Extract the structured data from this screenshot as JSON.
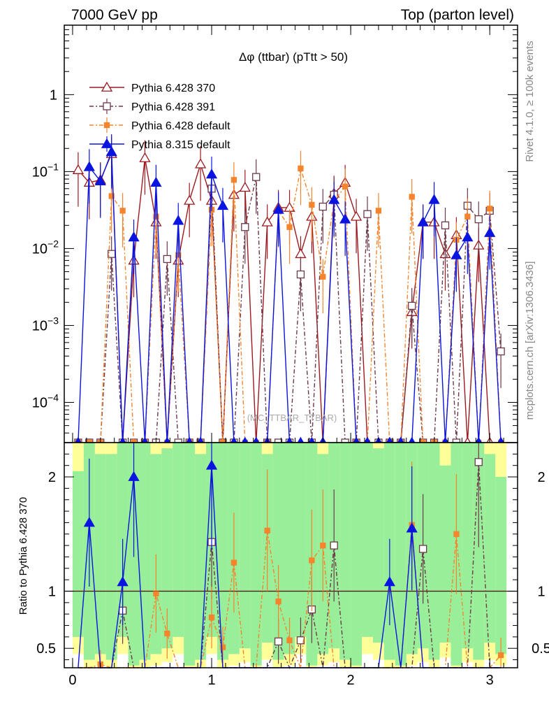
{
  "chart_data": {
    "type": "line",
    "header_left": "7000 GeV pp",
    "header_right": "Top (parton level)",
    "title": "Δφ (ttbar) (pTtt > 50)",
    "watermark": "(MC_TTBAR_TTBAR)",
    "side_text_top": "Rivet 4.1.0, ≥ 100k events",
    "side_text_bottom": "mcplots.cern.ch [arXiv:1306.3436]",
    "ylabel_ratio": "Ratio to Pythia 6.428 370",
    "xlim": [
      -0.06,
      3.2
    ],
    "ylim_main": [
      3e-05,
      8
    ],
    "ylim_ratio": [
      0.33,
      2.3
    ],
    "x_ticks": [
      "0",
      "1",
      "2",
      "3"
    ],
    "y_ticks_main": [
      "10^-4",
      "10^-3",
      "10^-2",
      "10^-1",
      "1"
    ],
    "y_ticks_ratio": [
      "0.5",
      "1",
      "2"
    ],
    "legend": [
      "Pythia 6.428 370",
      "Pythia 6.428 391",
      "Pythia 6.428 default",
      "Pythia 8.315 default"
    ],
    "colors": {
      "p370": "#9c1a1f",
      "p391": "#6b3a4a",
      "pdef": "#f5842c",
      "p8": "#0a14e0",
      "green": "#99ee99",
      "yellow": "#ffff99"
    },
    "x": [
      0.04,
      0.12,
      0.2,
      0.28,
      0.36,
      0.44,
      0.52,
      0.6,
      0.68,
      0.76,
      0.84,
      0.92,
      1.0,
      1.08,
      1.16,
      1.24,
      1.32,
      1.4,
      1.48,
      1.56,
      1.64,
      1.72,
      1.8,
      1.88,
      1.96,
      2.04,
      2.12,
      2.2,
      2.28,
      2.36,
      2.44,
      2.52,
      2.6,
      2.68,
      2.76,
      2.84,
      2.92,
      3.0,
      3.08
    ],
    "series": [
      {
        "name": "Pythia 6.428 370",
        "key": "p370",
        "marker": "triangle-open",
        "values": [
          0.105,
          0.072,
          0.078,
          0.17,
          0,
          0.007,
          0.15,
          0.022,
          0,
          0.007,
          0.042,
          0.125,
          0.042,
          0,
          0.05,
          0.062,
          0,
          0.022,
          0.034,
          0.034,
          0.0085,
          0.026,
          0,
          0.052,
          0.072,
          0.026,
          0,
          0,
          0,
          0,
          0.0015,
          0.022,
          0.022,
          0.0085,
          0.015,
          0,
          0.011,
          0,
          0
        ]
      },
      {
        "name": "Pythia 6.428 391",
        "key": "p391",
        "marker": "square-open",
        "values": [
          0,
          0,
          0,
          0.0085,
          0,
          0,
          0,
          0,
          0.0073,
          0,
          0,
          0,
          0.06,
          0,
          0,
          0.019,
          0.085,
          0,
          0,
          0,
          0.0046,
          0,
          0.035,
          0.05,
          0,
          0,
          0.028,
          0,
          0,
          0,
          0.0018,
          0,
          0,
          0.02,
          0,
          0.036,
          0.024,
          0.031,
          0.00046
        ]
      },
      {
        "name": "Pythia 6.428 default",
        "key": "pdef",
        "marker": "square-filled",
        "values": [
          0,
          0,
          0,
          0.048,
          0.031,
          0,
          0,
          0.026,
          0,
          0.0082,
          0,
          0,
          0.032,
          0,
          0.078,
          0,
          0,
          0,
          0.031,
          0.019,
          0.11,
          0.037,
          0.0043,
          0.041,
          0.064,
          0,
          0,
          0.031,
          0,
          0,
          0.047,
          0,
          0,
          0,
          0.013,
          0.026,
          0,
          0.033,
          0
        ]
      },
      {
        "name": "Pythia 8.315 default",
        "key": "p8",
        "marker": "triangle-filled",
        "values": [
          0,
          0.115,
          0.075,
          0.18,
          0,
          0.014,
          0,
          0.072,
          0,
          0.023,
          0,
          0,
          0.092,
          0.036,
          0,
          0,
          0,
          0,
          0.032,
          0,
          0,
          0,
          0,
          0.043,
          0.024,
          0,
          0,
          0,
          0,
          0,
          0,
          0.022,
          0.043,
          0,
          0.0082,
          0.014,
          0,
          0.016,
          0
        ]
      }
    ],
    "ratio_series": [
      {
        "key": "p391",
        "values": [
          0,
          0,
          0,
          0,
          0.83,
          0,
          0,
          0,
          0,
          0,
          0,
          0,
          1.43,
          0,
          0,
          0,
          0,
          0,
          0.56,
          0,
          0.57,
          0.84,
          0,
          1.4,
          0,
          0,
          0,
          0,
          0,
          0,
          0,
          1.37,
          0,
          0,
          0,
          0,
          2.13,
          0,
          0
        ]
      },
      {
        "key": "pdef",
        "values": [
          0,
          0,
          0.36,
          0,
          0,
          0,
          0,
          0.98,
          0.63,
          0,
          0,
          0,
          0.77,
          0.51,
          1.25,
          0,
          0,
          1.53,
          0.91,
          0.57,
          0,
          1.27,
          1.4,
          0,
          0,
          0,
          0,
          0,
          0,
          0,
          1.58,
          0,
          0,
          0,
          1.5,
          0,
          0,
          0,
          0.44
        ]
      },
      {
        "key": "p8",
        "values": [
          0,
          1.6,
          0,
          0,
          1.08,
          2.0,
          0,
          0,
          0,
          0,
          0,
          0,
          2.1,
          0,
          0,
          0,
          0,
          0,
          0,
          0,
          0,
          0,
          0,
          0,
          0,
          0,
          0,
          0,
          1.08,
          0,
          1.55,
          0,
          0,
          0,
          0,
          0,
          0,
          0,
          0
        ]
      }
    ],
    "band_green": [
      [
        0.6,
        2.05
      ],
      [
        0.4,
        2.3
      ],
      [
        0.45,
        2.2
      ],
      [
        0.4,
        2.2
      ],
      [
        0.6,
        2.3
      ],
      [
        0.35,
        2.3
      ],
      [
        0.4,
        2.3
      ],
      [
        0.45,
        2.2
      ],
      [
        0.5,
        2.25
      ],
      [
        0.6,
        2.3
      ],
      [
        0.35,
        2.3
      ],
      [
        0.4,
        2.2
      ],
      [
        0.6,
        2.3
      ],
      [
        0.4,
        2.3
      ],
      [
        0.45,
        2.3
      ],
      [
        0.5,
        2.3
      ],
      [
        0.35,
        2.3
      ],
      [
        0.55,
        2.2
      ],
      [
        0.4,
        2.3
      ],
      [
        0.45,
        2.3
      ],
      [
        0.6,
        2.3
      ],
      [
        0.35,
        2.3
      ],
      [
        0.45,
        2.2
      ],
      [
        0.5,
        2.3
      ],
      [
        0.4,
        2.3
      ],
      [
        0.35,
        2.3
      ],
      [
        0.6,
        2.3
      ],
      [
        0.55,
        2.25
      ],
      [
        0.4,
        2.3
      ],
      [
        0.35,
        2.3
      ],
      [
        0.45,
        2.3
      ],
      [
        0.5,
        2.3
      ],
      [
        0.4,
        2.3
      ],
      [
        0.55,
        2.1
      ],
      [
        0.35,
        2.3
      ],
      [
        0.5,
        2.3
      ],
      [
        0.4,
        2.3
      ],
      [
        0.55,
        2.2
      ],
      [
        0.45,
        2.0
      ]
    ],
    "band_yellow": [
      [
        0.45,
        2.3
      ],
      [
        0.33,
        2.3
      ],
      [
        0.35,
        2.3
      ],
      [
        0.33,
        2.3
      ],
      [
        0.45,
        2.3
      ],
      [
        0.33,
        2.3
      ],
      [
        0.33,
        2.3
      ],
      [
        0.35,
        2.3
      ],
      [
        0.38,
        2.3
      ],
      [
        0.45,
        2.3
      ],
      [
        0.33,
        2.3
      ],
      [
        0.33,
        2.3
      ],
      [
        0.45,
        2.3
      ],
      [
        0.33,
        2.3
      ],
      [
        0.35,
        2.3
      ],
      [
        0.38,
        2.3
      ],
      [
        0.33,
        2.3
      ],
      [
        0.4,
        2.3
      ],
      [
        0.33,
        2.3
      ],
      [
        0.35,
        2.3
      ],
      [
        0.45,
        2.3
      ],
      [
        0.33,
        2.3
      ],
      [
        0.35,
        2.3
      ],
      [
        0.38,
        2.3
      ],
      [
        0.33,
        2.3
      ],
      [
        0.33,
        2.3
      ],
      [
        0.45,
        2.3
      ],
      [
        0.4,
        2.3
      ],
      [
        0.33,
        2.3
      ],
      [
        0.33,
        2.3
      ],
      [
        0.35,
        2.3
      ],
      [
        0.38,
        2.3
      ],
      [
        0.33,
        2.3
      ],
      [
        0.42,
        2.3
      ],
      [
        0.33,
        2.3
      ],
      [
        0.38,
        2.3
      ],
      [
        0.33,
        2.3
      ],
      [
        0.4,
        2.3
      ],
      [
        0.35,
        2.3
      ]
    ]
  }
}
